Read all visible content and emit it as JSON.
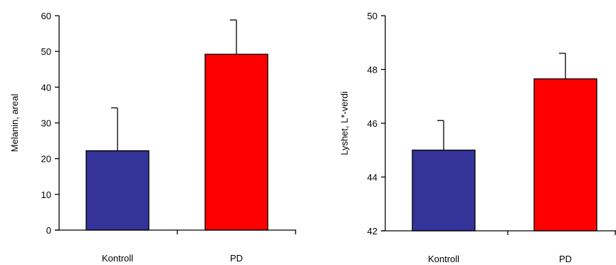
{
  "chart_data": [
    {
      "type": "bar",
      "categories": [
        "Kontroll",
        "PD"
      ],
      "values": [
        22.2,
        49.2
      ],
      "errors": [
        12.0,
        9.6
      ],
      "ylabel": "Melanin, areal",
      "xlabel": "",
      "ylim": [
        0,
        60
      ],
      "yticks": [
        0,
        10,
        20,
        30,
        40,
        50,
        60
      ],
      "colors": [
        "#333399",
        "#ff0000"
      ],
      "grid": false,
      "legend": "none"
    },
    {
      "type": "bar",
      "categories": [
        "Kontroll",
        "PD"
      ],
      "values": [
        45.0,
        47.65
      ],
      "errors": [
        1.1,
        0.95
      ],
      "ylabel": "Lyshet, L*-verdi",
      "xlabel": "",
      "ylim": [
        42,
        50
      ],
      "yticks": [
        42,
        44,
        46,
        48,
        50
      ],
      "colors": [
        "#333399",
        "#ff0000"
      ],
      "grid": false,
      "legend": "none"
    }
  ]
}
